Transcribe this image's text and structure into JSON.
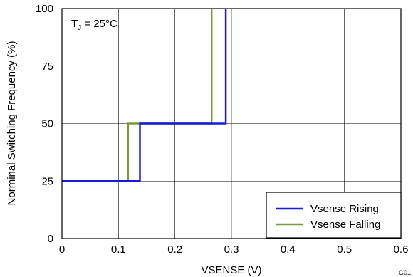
{
  "chart_data": {
    "type": "line",
    "title": "",
    "xlabel": "VSENSE (V)",
    "ylabel": "Norminal Switching Frequency (%)",
    "xlim": [
      0,
      0.6
    ],
    "ylim": [
      0,
      100
    ],
    "xticks": [
      "0",
      "0.1",
      "0.2",
      "0.3",
      "0.4",
      "0.5",
      "0.6"
    ],
    "yticks": [
      "0",
      "25",
      "50",
      "75",
      "100"
    ],
    "grid": true,
    "legend_position": "bottom-right",
    "annotation": {
      "base": "T",
      "sub": "J",
      "rest": " = 25°C"
    },
    "figure_id": "G01",
    "series": [
      {
        "name": "Vsense Rising",
        "color": "#1a1adc",
        "x": [
          0,
          0.138,
          0.138,
          0.29,
          0.29
        ],
        "y": [
          25,
          25,
          50,
          50,
          100
        ]
      },
      {
        "name": "Vsense Falling",
        "color": "#7b9a3c",
        "x": [
          0,
          0.117,
          0.117,
          0.265,
          0.265
        ],
        "y": [
          25,
          25,
          50,
          50,
          100
        ]
      }
    ]
  }
}
